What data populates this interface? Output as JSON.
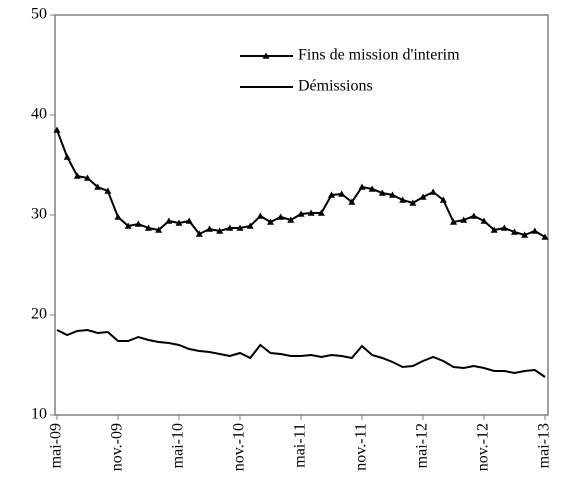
{
  "chart_data": {
    "type": "line",
    "categories": [
      "mai-09",
      null,
      null,
      null,
      null,
      null,
      "nov.-09",
      null,
      null,
      null,
      null,
      null,
      "mai-10",
      null,
      null,
      null,
      null,
      null,
      "nov.-10",
      null,
      null,
      null,
      null,
      null,
      "mai-11",
      null,
      null,
      null,
      null,
      null,
      "nov.-11",
      null,
      null,
      null,
      null,
      null,
      "mai-12",
      null,
      null,
      null,
      null,
      null,
      "nov.-12",
      null,
      null,
      null,
      null,
      null,
      "mai-13"
    ],
    "series": [
      {
        "name": "Fins de mission d'interim",
        "color": "#000000",
        "marker": "triangle",
        "values": [
          38.5,
          35.8,
          33.9,
          33.7,
          32.8,
          32.4,
          29.8,
          28.9,
          29.1,
          28.7,
          28.5,
          29.4,
          29.2,
          29.4,
          28.1,
          28.6,
          28.4,
          28.7,
          28.7,
          28.9,
          29.9,
          29.3,
          29.8,
          29.5,
          30.1,
          30.2,
          30.2,
          32.0,
          32.1,
          31.3,
          32.8,
          32.6,
          32.2,
          32.0,
          31.5,
          31.2,
          31.8,
          32.3,
          31.5,
          29.3,
          29.5,
          29.9,
          29.4,
          28.5,
          28.7,
          28.3,
          28.0,
          28.4,
          27.8
        ]
      },
      {
        "name": "Démissions",
        "color": "#000000",
        "values": [
          18.5,
          18.0,
          18.4,
          18.5,
          18.2,
          18.3,
          17.4,
          17.4,
          17.8,
          17.5,
          17.3,
          17.2,
          17.0,
          16.6,
          16.4,
          16.3,
          16.1,
          15.9,
          16.2,
          15.7,
          17.0,
          16.2,
          16.1,
          15.9,
          15.9,
          16.0,
          15.8,
          16.0,
          15.9,
          15.7,
          16.9,
          16.0,
          15.7,
          15.3,
          14.8,
          14.9,
          15.4,
          15.8,
          15.4,
          14.8,
          14.7,
          14.9,
          14.7,
          14.4,
          14.4,
          14.2,
          14.4,
          14.5,
          13.8
        ]
      }
    ],
    "ylim": [
      10,
      50
    ],
    "yticks": [
      10,
      20,
      30,
      40,
      50
    ],
    "grid": false,
    "legend": "top-right"
  }
}
